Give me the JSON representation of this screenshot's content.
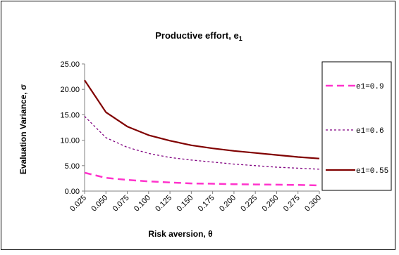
{
  "chart_data": {
    "type": "line",
    "title": "Productive effort, e",
    "title_subscript": "1",
    "xlabel": "Risk aversion, θ",
    "ylabel": "Evaluation Variance, σ",
    "x": [
      0.025,
      0.05,
      0.075,
      0.1,
      0.125,
      0.15,
      0.175,
      0.2,
      0.225,
      0.25,
      0.275,
      0.3
    ],
    "x_tick_labels": [
      "0.025",
      "0.050",
      "0.075",
      "0.100",
      "0.125",
      "0.150",
      "0.175",
      "0.200",
      "0.225",
      "0.250",
      "0.275",
      "0.300"
    ],
    "y_tick_labels": [
      "0.00",
      "5.00",
      "10.00",
      "15.00",
      "20.00",
      "25.00"
    ],
    "ylim": [
      0,
      25
    ],
    "grid": false,
    "legend_position": "right",
    "series": [
      {
        "name": "e1=0.9",
        "color": "#ff33cc",
        "dash": "long-dash",
        "values": [
          3.6,
          2.6,
          2.2,
          1.9,
          1.7,
          1.5,
          1.45,
          1.35,
          1.3,
          1.25,
          1.2,
          1.1
        ]
      },
      {
        "name": "e1=0.6",
        "color": "#800080",
        "dash": "short-dash",
        "values": [
          14.7,
          10.5,
          8.6,
          7.4,
          6.6,
          6.1,
          5.7,
          5.3,
          5.0,
          4.7,
          4.5,
          4.3
        ]
      },
      {
        "name": "e1=0.55",
        "color": "#800000",
        "dash": "solid",
        "values": [
          21.8,
          15.5,
          12.7,
          11.0,
          9.9,
          9.0,
          8.4,
          7.9,
          7.5,
          7.1,
          6.7,
          6.4
        ]
      }
    ]
  }
}
